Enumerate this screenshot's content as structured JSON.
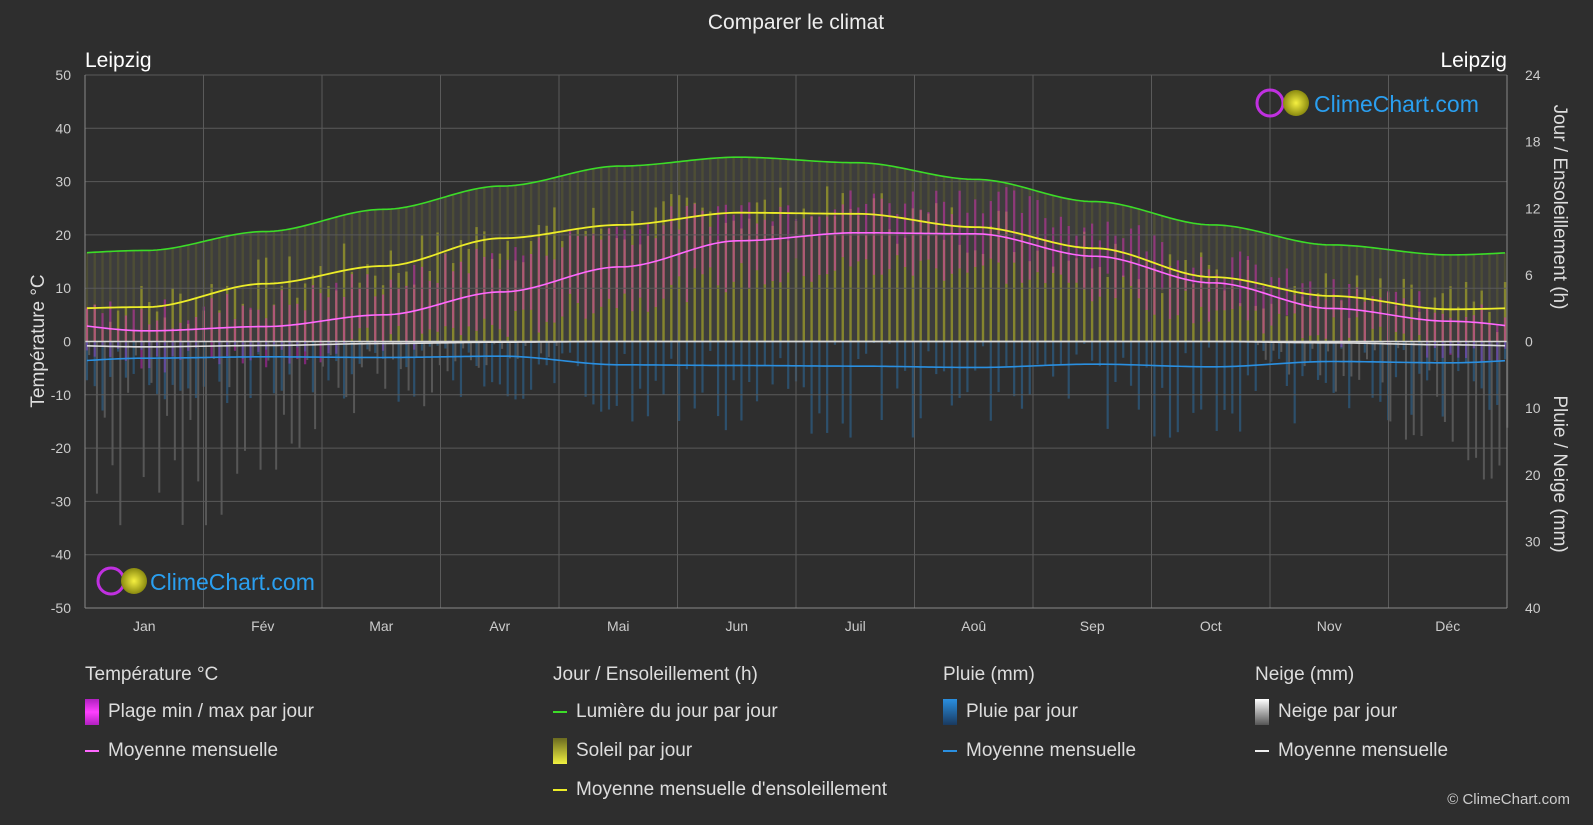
{
  "title": "Comparer le climat",
  "city_left": "Leipzig",
  "city_right": "Leipzig",
  "brand": "ClimeChart.com",
  "copyright": "© ClimeChart.com",
  "colors": {
    "background": "#2e2e2e",
    "daylight": "#3cdc28",
    "sunshine_avg": "#ecec28",
    "temp_avg": "#ff68ff",
    "temp_range": "#e020d0",
    "sunshine_fill": "#b4b428",
    "rain": "#2a8fe0",
    "snow": "#dddddd",
    "brand_text": "#2a9ff0"
  },
  "legend": {
    "temperature": {
      "title": "Température °C",
      "range_label": "Plage min / max par jour",
      "mean_label": "Moyenne mensuelle"
    },
    "sun": {
      "title": "Jour / Ensoleillement (h)",
      "daylight_label": "Lumière du jour par jour",
      "sunshine_label": "Soleil par jour",
      "sunshine_mean_label": "Moyenne mensuelle d'ensoleillement"
    },
    "rain": {
      "title": "Pluie (mm)",
      "daily_label": "Pluie par jour",
      "mean_label": "Moyenne mensuelle"
    },
    "snow": {
      "title": "Neige (mm)",
      "daily_label": "Neige par jour",
      "mean_label": "Moyenne mensuelle"
    }
  },
  "chart_data": {
    "type": "area",
    "title": "Comparer le climat",
    "categories": [
      "Jan",
      "Fév",
      "Mar",
      "Avr",
      "Mai",
      "Jun",
      "Juil",
      "Aoû",
      "Sep",
      "Oct",
      "Nov",
      "Déc"
    ],
    "axes": {
      "left": {
        "label": "Température °C",
        "min": -50,
        "max": 50,
        "ticks": [
          50,
          40,
          30,
          20,
          10,
          0,
          -10,
          -20,
          -30,
          -40,
          -50
        ]
      },
      "right_top": {
        "label": "Jour / Ensoleillement (h)",
        "min": 0,
        "max": 24,
        "ticks": [
          24,
          18,
          12,
          6,
          0
        ]
      },
      "right_bottom": {
        "label": "Pluie / Neige (mm)",
        "min": 0,
        "max": 40,
        "ticks": [
          0,
          10,
          20,
          30,
          40
        ]
      }
    },
    "grid": true,
    "series": [
      {
        "name": "Lumière du jour par jour",
        "unit": "h",
        "values": [
          8.2,
          9.9,
          11.9,
          14.0,
          15.8,
          16.6,
          16.1,
          14.6,
          12.6,
          10.5,
          8.7,
          7.8
        ]
      },
      {
        "name": "Moyenne mensuelle d'ensoleillement",
        "unit": "h",
        "values": [
          3.1,
          5.2,
          6.8,
          9.3,
          10.5,
          11.6,
          11.5,
          10.3,
          8.4,
          5.8,
          4.1,
          2.9
        ]
      },
      {
        "name": "Moyenne mensuelle",
        "unit": "°C",
        "kind": "temperature",
        "values": [
          2.0,
          2.8,
          5.0,
          9.3,
          14.0,
          18.9,
          20.4,
          20.2,
          16.0,
          11.0,
          6.2,
          3.8
        ]
      },
      {
        "name": "Plage min / max par jour",
        "unit": "°C",
        "kind": "range",
        "min": [
          -3,
          -2,
          0,
          3,
          8,
          12,
          14,
          14,
          10,
          6,
          2,
          -1
        ],
        "max": [
          5,
          7,
          11,
          16,
          21,
          25,
          26,
          27,
          22,
          15,
          9,
          6
        ]
      },
      {
        "name": "Pluie Moyenne mensuelle",
        "unit": "mm",
        "kind": "rain",
        "values": [
          2.5,
          2.3,
          2.4,
          2.2,
          3.5,
          3.6,
          3.7,
          3.9,
          3.4,
          3.8,
          3.0,
          3.2
        ]
      },
      {
        "name": "Neige Moyenne mensuelle",
        "unit": "mm",
        "kind": "snow",
        "values": [
          0.8,
          0.6,
          0.3,
          0.1,
          0,
          0,
          0,
          0,
          0,
          0,
          0.2,
          0.5
        ]
      }
    ]
  }
}
